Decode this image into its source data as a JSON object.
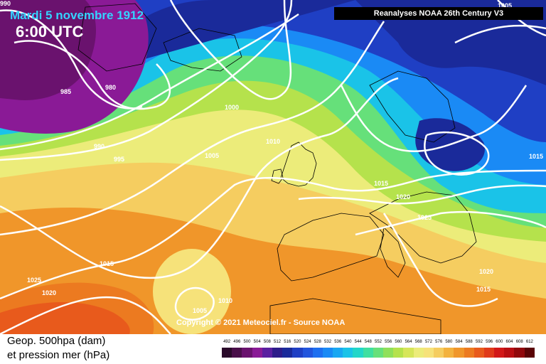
{
  "header": {
    "date": "Mardi 5 novembre 1912",
    "time": "6:00 UTC",
    "banner": "Reanalyses NOAA 26th Century V3"
  },
  "map": {
    "copyright": "Copyright © 2021 Meteociel.fr - Source NOAA",
    "isobar_labels": [
      {
        "text": "990"
      },
      {
        "text": "985"
      },
      {
        "text": "980"
      },
      {
        "text": "1000"
      },
      {
        "text": "990"
      },
      {
        "text": "995"
      },
      {
        "text": "1005"
      },
      {
        "text": "1010"
      },
      {
        "text": "1015"
      },
      {
        "text": "1020"
      },
      {
        "text": "1025"
      },
      {
        "text": "1015"
      },
      {
        "text": "1025"
      },
      {
        "text": "1020"
      },
      {
        "text": "1010"
      },
      {
        "text": "1005"
      },
      {
        "text": "1020"
      },
      {
        "text": "1015"
      },
      {
        "text": "1015"
      },
      {
        "text": "1005"
      }
    ]
  },
  "legend": {
    "line1": "Geop. 500hpa (dam)",
    "line2": "et pression mer (hPa)",
    "scale_values": [
      "492",
      "496",
      "500",
      "504",
      "508",
      "512",
      "516",
      "520",
      "524",
      "528",
      "532",
      "536",
      "540",
      "544",
      "548",
      "552",
      "556",
      "560",
      "564",
      "568",
      "572",
      "576",
      "580",
      "584",
      "588",
      "592",
      "596",
      "600",
      "604",
      "608",
      "612"
    ],
    "scale_colors": [
      "#2a0a2a",
      "#4a0f4a",
      "#6a126e",
      "#8a1a96",
      "#5a1fa0",
      "#2d1c8a",
      "#1a2a9a",
      "#1f3fc4",
      "#2255dd",
      "#1e6ff0",
      "#1a8af5",
      "#19a7f2",
      "#1ac3e8",
      "#22d6c9",
      "#3fdfa0",
      "#66e07a",
      "#8fe05a",
      "#b5e24c",
      "#d6e65a",
      "#ecec7a",
      "#f6e27a",
      "#f5cd60",
      "#f3b23e",
      "#f0962a",
      "#ec7a20",
      "#e85a1c",
      "#e03a1a",
      "#d21818",
      "#b80e12",
      "#90080c",
      "#5a0406"
    ],
    "accent": "#34d3ff"
  }
}
